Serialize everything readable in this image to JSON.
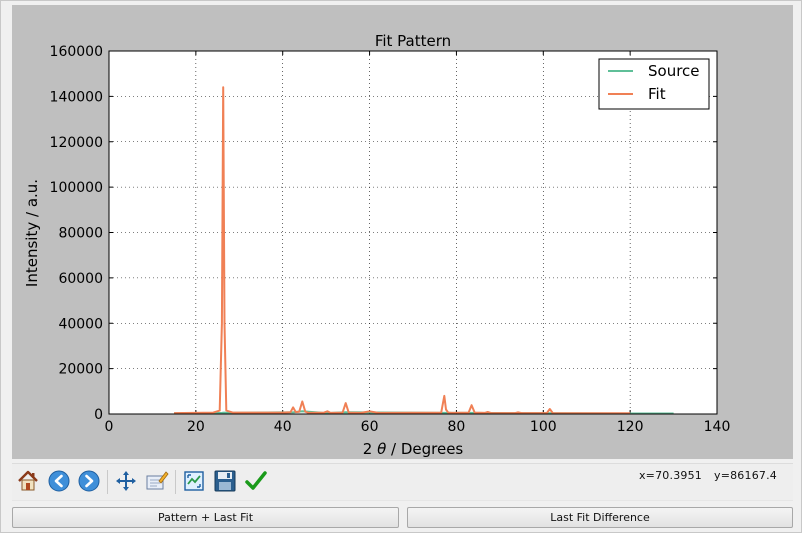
{
  "toolbar": {
    "home_icon": "home-icon",
    "back_icon": "back-arrow-icon",
    "forward_icon": "forward-arrow-icon",
    "pan_icon": "pan-move-icon",
    "zoom_icon": "zoom-rectangle-icon",
    "subplots_icon": "configure-subplots-icon",
    "save_icon": "save-floppy-icon",
    "apply_icon": "checkmark-icon",
    "coord_x": "x=70.3951",
    "coord_y": "y=86167.4"
  },
  "buttons": {
    "pattern_last_fit": "Pattern + Last Fit",
    "last_fit_difference": "Last Fit Difference"
  },
  "colors": {
    "source": "#5fbf98",
    "fit": "#f08055",
    "figure_bg": "#bfbfbf"
  },
  "chart_data": {
    "type": "line",
    "title": "Fit Pattern",
    "xlabel_prefix": "2 ",
    "xlabel_theta": "θ",
    "xlabel_suffix": " / Degrees",
    "ylabel": "Intensity / a.u.",
    "xlim": [
      0,
      140
    ],
    "ylim": [
      0,
      160000
    ],
    "xticks": [
      "0",
      "20",
      "40",
      "60",
      "80",
      "100",
      "120",
      "140"
    ],
    "yticks": [
      "0",
      "20000",
      "40000",
      "60000",
      "80000",
      "100000",
      "120000",
      "140000",
      "160000"
    ],
    "grid": true,
    "legend_position": "top-right",
    "series": [
      {
        "name": "Source",
        "color": "#5fbf98",
        "x": [
          15,
          26,
          26.5,
          27,
          42.5,
          44.5,
          50,
          54.5,
          77.5,
          83.5,
          101.5,
          120,
          130
        ],
        "y": [
          300,
          500,
          600,
          500,
          800,
          1200,
          400,
          800,
          500,
          500,
          300,
          200,
          200
        ]
      },
      {
        "name": "Fit",
        "color": "#f08055",
        "x": [
          15,
          24,
          25.5,
          26,
          26.3,
          26.6,
          27,
          28.5,
          40,
          41.8,
          42.4,
          43,
          43.8,
          44.5,
          45.2,
          46,
          49.5,
          50.3,
          51,
          53.8,
          54.5,
          55.2,
          58,
          60,
          62,
          76.5,
          77.2,
          77.6,
          78.1,
          79,
          82.8,
          83.5,
          84.2,
          86.5,
          87.2,
          88,
          93.5,
          94.2,
          95,
          100.8,
          101.5,
          102.2,
          120
        ],
        "y": [
          400,
          600,
          1500,
          40000,
          144000,
          40000,
          1500,
          600,
          600,
          800,
          2900,
          900,
          1000,
          5500,
          1000,
          500,
          600,
          1200,
          500,
          600,
          4800,
          600,
          500,
          1200,
          500,
          600,
          8000,
          2000,
          600,
          500,
          600,
          3900,
          600,
          500,
          900,
          400,
          400,
          700,
          400,
          400,
          2200,
          400,
          300
        ]
      }
    ]
  }
}
